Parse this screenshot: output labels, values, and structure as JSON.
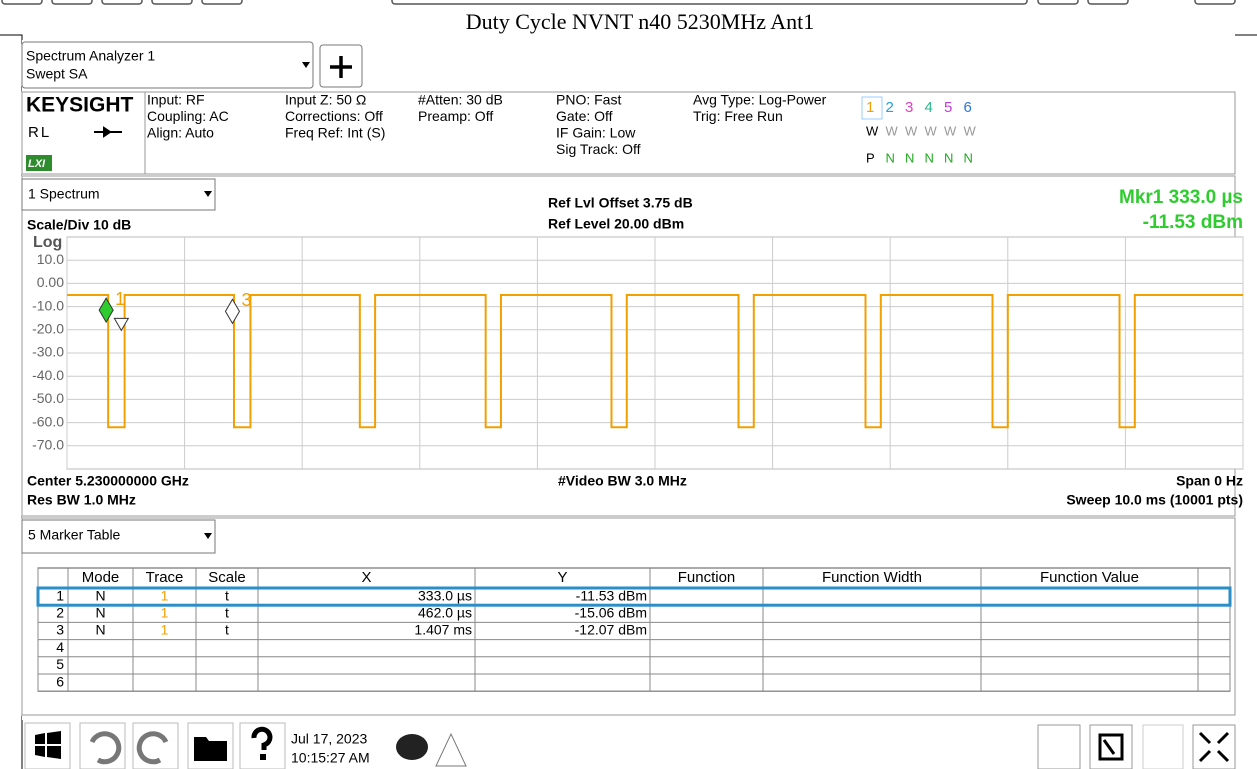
{
  "title": "Duty Cycle NVNT n40 5230MHz Ant1",
  "app": {
    "name": "Spectrum Analyzer 1",
    "mode": "Swept SA"
  },
  "brand": "KEYSIGHT",
  "rl": "RL",
  "lxi": "LXI",
  "settings": [
    [
      "Input: RF",
      "Coupling: AC",
      "Align: Auto"
    ],
    [
      "Input Z: 50 Ω",
      "Corrections: Off",
      "Freq Ref: Int (S)"
    ],
    [
      "#Atten: 30 dB",
      "Preamp: Off"
    ],
    [
      "PNO: Fast",
      "Gate: Off",
      "IF Gain: Low",
      "Sig Track: Off"
    ],
    [
      "Avg Type: Log-Power",
      "Trig: Free Run"
    ]
  ],
  "traces": {
    "numbers": [
      "1",
      "2",
      "3",
      "4",
      "5",
      "6"
    ],
    "colors": [
      "#f0a000",
      "#22a0d8",
      "#e040c0",
      "#30b890",
      "#c040d8",
      "#2878e0"
    ],
    "types": [
      "W",
      "W",
      "W",
      "W",
      "W",
      "W"
    ],
    "detectors": [
      "P",
      "N",
      "N",
      "N",
      "N",
      "N"
    ]
  },
  "chart_data": {
    "type": "line",
    "window": "1 Spectrum",
    "ref_offset": "Ref Lvl Offset 3.75 dB",
    "ref_level": "Ref Level 20.00 dBm",
    "marker_readout": [
      "Mkr1  333.0 µs",
      "-11.53 dBm"
    ],
    "scale": "Scale/Div 10 dB",
    "scale_type": "Log",
    "xlim": [
      0,
      10
    ],
    "xticks": [
      0,
      1,
      2,
      3,
      4,
      5,
      6,
      7,
      8,
      9,
      10
    ],
    "ylim": [
      -80,
      20
    ],
    "yticks": [
      {
        "value": 10,
        "label": "10.0"
      },
      {
        "value": 0,
        "label": "0.00"
      },
      {
        "value": -10,
        "label": "-10.0"
      },
      {
        "value": -20,
        "label": "-20.0"
      },
      {
        "value": -30,
        "label": "-30.0"
      },
      {
        "value": -40,
        "label": "-40.0"
      },
      {
        "value": -50,
        "label": "-50.0"
      },
      {
        "value": -60,
        "label": "-60.0"
      },
      {
        "value": -70,
        "label": "-70.0"
      }
    ],
    "grid": true,
    "x": [
      0,
      0.35,
      0.35,
      0.49,
      0.49,
      1.42,
      1.42,
      1.56,
      1.56,
      2.49,
      2.49,
      2.62,
      2.62,
      3.56,
      3.56,
      3.69,
      3.69,
      4.63,
      4.63,
      4.76,
      4.76,
      5.71,
      5.71,
      5.84,
      5.84,
      6.79,
      6.79,
      6.92,
      6.92,
      7.87,
      7.87,
      8.0,
      8.0,
      8.95,
      8.95,
      9.08,
      9.08,
      10
    ],
    "series": [
      {
        "color": "#f0a000",
        "values": [
          -5,
          -5,
          -62,
          -62,
          -5,
          -5,
          -62,
          -62,
          -5,
          -5,
          -62,
          -62,
          -5,
          -5,
          -62,
          -62,
          -5,
          -5,
          -62,
          -62,
          -5,
          -5,
          -62,
          -62,
          -5,
          -5,
          -62,
          -62,
          -5,
          -5,
          -62,
          -62,
          -5,
          -5,
          -62,
          -62,
          -5,
          -5
        ]
      }
    ],
    "markers": {
      "x": [
        0.333,
        0.462,
        1.407
      ],
      "y": [
        -11.53,
        -15.06,
        -12.07
      ],
      "labels": [
        "1",
        null,
        "3"
      ]
    },
    "footer": {
      "center": "Center 5.230000000 GHz",
      "vbw": "#Video BW 3.0 MHz",
      "span": "Span 0 Hz",
      "rbw": "Res BW 1.0 MHz",
      "sweep": "Sweep 10.0 ms (10001 pts)"
    }
  },
  "marker_table": {
    "window": "5 Marker Table",
    "columns": [
      "Mode",
      "Trace",
      "Scale",
      "X",
      "Y",
      "Function",
      "Function Width",
      "Function Value"
    ],
    "rows": [
      [
        "1",
        "N",
        "1",
        "t",
        "333.0 µs",
        "-11.53 dBm"
      ],
      [
        "2",
        "N",
        "1",
        "t",
        "462.0 µs",
        "-15.06 dBm"
      ],
      [
        "3",
        "N",
        "1",
        "t",
        "1.407 ms",
        "-12.07 dBm"
      ],
      [
        "4"
      ],
      [
        "5"
      ],
      [
        "6"
      ]
    ]
  },
  "taskbar": {
    "date": "Jul 17, 2023",
    "time": "10:15:27 AM"
  }
}
